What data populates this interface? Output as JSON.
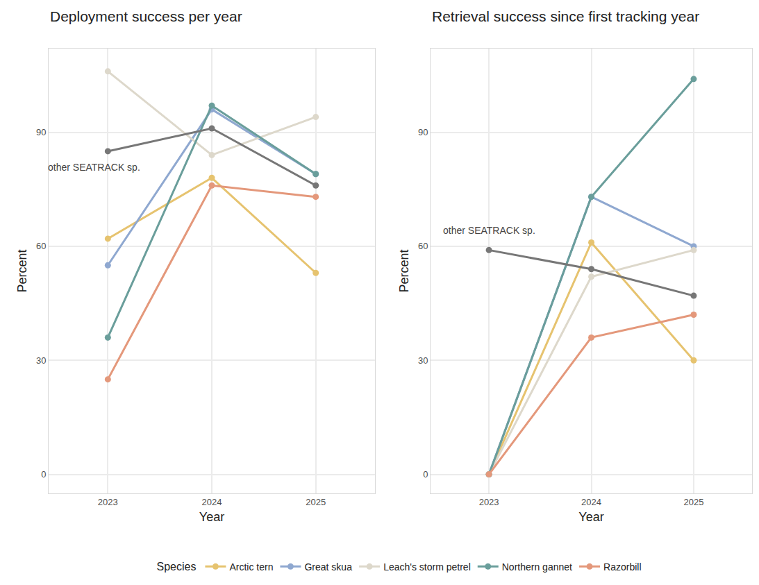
{
  "chart_data": [
    {
      "type": "line",
      "title": "Deployment success per year",
      "x_label": "Year",
      "y_label": "Percent",
      "x": [
        2023,
        2024,
        2025
      ],
      "xlim": [
        2022.43,
        2025.57
      ],
      "xticks": [
        2023,
        2024,
        2025
      ],
      "ylim": [
        -5,
        112
      ],
      "yticks": [
        0,
        30,
        60,
        90
      ],
      "grid": true,
      "legend": "bottom",
      "legend_title": "Species",
      "annotations": [
        {
          "text": "other SEATRACK sp."
        }
      ],
      "series": [
        {
          "name": "Arctic tern",
          "color": "#e6c36f",
          "values": [
            62,
            78,
            53
          ]
        },
        {
          "name": "Great skua",
          "color": "#8fa8d0",
          "values": [
            55,
            96,
            79
          ]
        },
        {
          "name": "Leach's storm petrel",
          "color": "#ddd8cb",
          "values": [
            106,
            84,
            94
          ]
        },
        {
          "name": "Northern gannet",
          "color": "#6a9e9b",
          "values": [
            36,
            97,
            79
          ]
        },
        {
          "name": "Razorbill",
          "color": "#e4987b",
          "values": [
            25,
            76,
            73
          ]
        },
        {
          "name": "other SEATRACK sp.",
          "color": "#777777",
          "values": [
            85,
            91,
            76
          ]
        }
      ]
    },
    {
      "type": "line",
      "title": "Retrieval success since first tracking year",
      "x_label": "Year",
      "y_label": "Percent",
      "x": [
        2023,
        2024,
        2025
      ],
      "xlim": [
        2022.43,
        2025.57
      ],
      "xticks": [
        2023,
        2024,
        2025
      ],
      "ylim": [
        -5,
        112
      ],
      "yticks": [
        0,
        30,
        60,
        90
      ],
      "grid": true,
      "annotations": [
        {
          "text": "other SEATRACK sp."
        }
      ],
      "series": [
        {
          "name": "Arctic tern",
          "color": "#e6c36f",
          "values": [
            0,
            61,
            30
          ]
        },
        {
          "name": "Great skua",
          "color": "#8fa8d0",
          "values": [
            0,
            73,
            60
          ]
        },
        {
          "name": "Leach's storm petrel",
          "color": "#ddd8cb",
          "values": [
            0,
            52,
            59
          ]
        },
        {
          "name": "Northern gannet",
          "color": "#6a9e9b",
          "values": [
            0,
            73,
            104
          ]
        },
        {
          "name": "Razorbill",
          "color": "#e4987b",
          "values": [
            0,
            36,
            42
          ]
        },
        {
          "name": "other SEATRACK sp.",
          "color": "#777777",
          "values": [
            59,
            54,
            47
          ]
        }
      ]
    }
  ]
}
